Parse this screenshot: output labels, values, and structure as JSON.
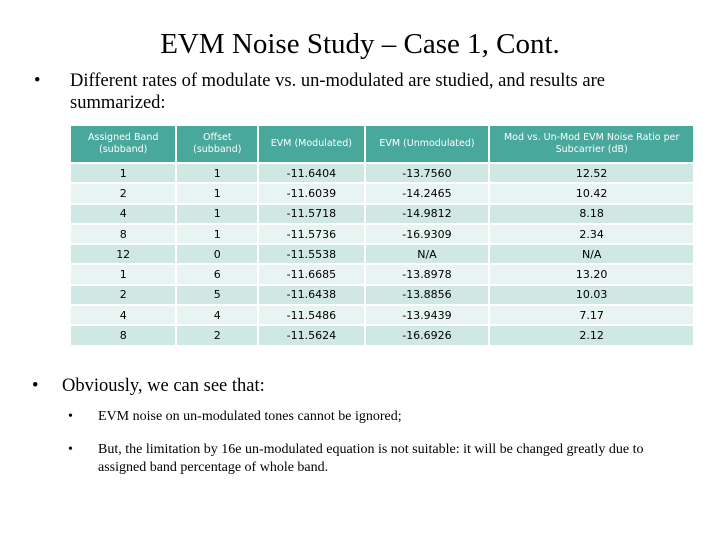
{
  "slide": {
    "title": "EVM Noise Study – Case 1, Cont.",
    "bullet_symbol": "•",
    "intro": "Different rates of modulate vs. un-modulated are studied, and results are summarized:",
    "conclusion_heading": "Obviously, we can see that:",
    "points": [
      "EVM noise on un-modulated tones cannot be ignored;",
      "But, the limitation by 16e un-modulated equation is not suitable: it will be changed greatly due to assigned band percentage of whole band."
    ]
  },
  "table": {
    "headers": [
      "Assigned Band (subband)",
      "Offset (subband)",
      "EVM (Modulated)",
      "EVM (Unmodulated)",
      "Mod vs. Un-Mod EVM Noise Ratio per Subcarrier (dB)"
    ],
    "rows": [
      [
        "1",
        "1",
        "-11.6404",
        "-13.7560",
        "12.52"
      ],
      [
        "2",
        "1",
        "-11.6039",
        "-14.2465",
        "10.42"
      ],
      [
        "4",
        "1",
        "-11.5718",
        "-14.9812",
        "8.18"
      ],
      [
        "8",
        "1",
        "-11.5736",
        "-16.9309",
        "2.34"
      ],
      [
        "12",
        "0",
        "-11.5538",
        "N/A",
        "N/A"
      ],
      [
        "1",
        "6",
        "-11.6685",
        "-13.8978",
        "13.20"
      ],
      [
        "2",
        "5",
        "-11.6438",
        "-13.8856",
        "10.03"
      ],
      [
        "4",
        "4",
        "-11.5486",
        "-13.9439",
        "7.17"
      ],
      [
        "8",
        "2",
        "-11.5624",
        "-16.6926",
        "2.12"
      ]
    ]
  },
  "colors": {
    "header_bg": "#47a89b",
    "row_dark": "#d0e8e3",
    "row_light": "#e8f4f2"
  }
}
